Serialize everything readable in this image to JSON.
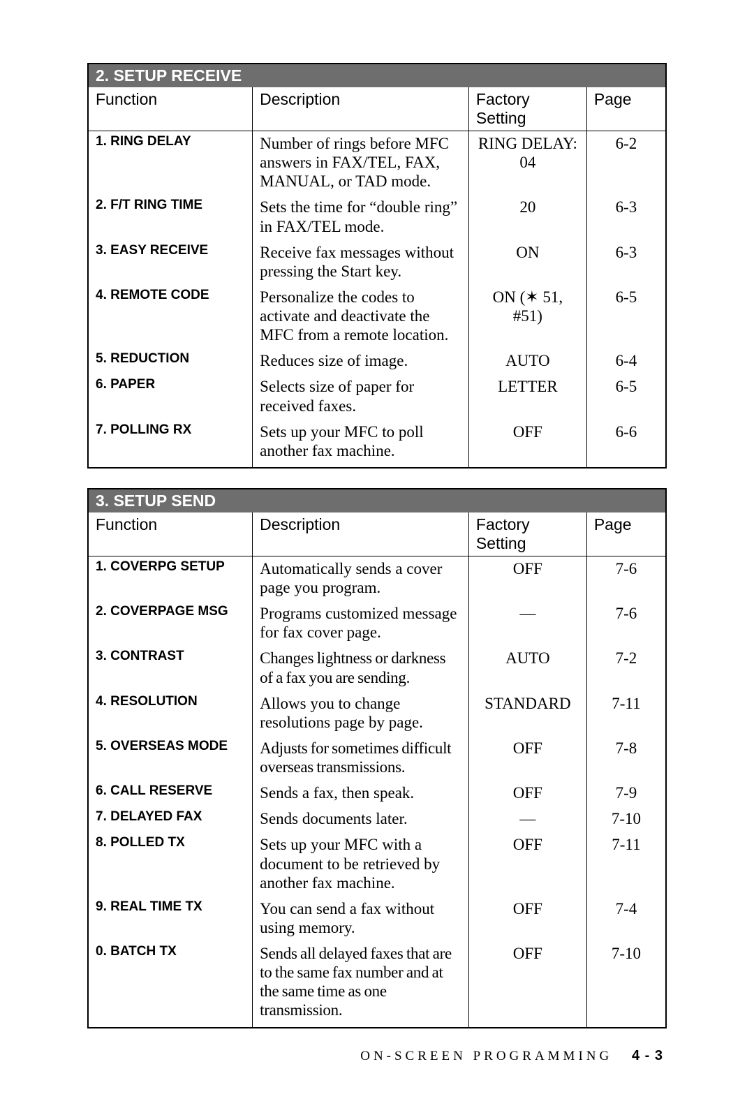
{
  "sections": [
    {
      "title": "2. SETUP RECEIVE",
      "columns": [
        "Function",
        "Description",
        "Factory Setting",
        "Page"
      ],
      "rows": [
        {
          "func": "1. RING DELAY",
          "desc": "Number of rings before MFC answers in FAX/TEL, FAX, MANUAL, or TAD mode.",
          "fact": "RING DELAY: 04",
          "page": "6-2"
        },
        {
          "func": "2. F/T RING TIME",
          "desc": "Sets the time for “double ring” in FAX/TEL mode.",
          "fact": "20",
          "page": "6-3"
        },
        {
          "func": "3. EASY RECEIVE",
          "desc": "Receive fax messages without pressing the Start key.",
          "fact": "ON",
          "page": "6-3"
        },
        {
          "func": "4. REMOTE CODE",
          "desc": "Personalize the codes to activate and deactivate the MFC from a remote location.",
          "fact": "ON (✶ 51, #51)",
          "page": "6-5"
        },
        {
          "func": "5. REDUCTION",
          "desc": "Reduces size of image.",
          "fact": "AUTO",
          "page": "6-4"
        },
        {
          "func": "6. PAPER",
          "desc": "Selects size of paper for received faxes.",
          "fact": "LETTER",
          "page": "6-5"
        },
        {
          "func": "7. POLLING RX",
          "desc": "Sets up your MFC to poll another fax machine.",
          "fact": "OFF",
          "page": "6-6"
        }
      ]
    },
    {
      "title": "3. SETUP SEND",
      "columns": [
        "Function",
        "Description",
        "Factory Setting",
        "Page"
      ],
      "rows": [
        {
          "func": "1. COVERPG SETUP",
          "desc": "Automatically sends a cover page you program.",
          "fact": "OFF",
          "page": "7-6"
        },
        {
          "func": "2. COVERPAGE MSG",
          "desc": "Programs customized message for fax cover page.",
          "fact": "—",
          "page": "7-6"
        },
        {
          "func": "3. CONTRAST",
          "desc": "Changes lightness or darkness of a fax you are sending.",
          "tight": true,
          "fact": "AUTO",
          "page": "7-2"
        },
        {
          "func": "4. RESOLUTION",
          "desc": "Allows you to change resolutions page by page.",
          "fact": "STANDARD",
          "page": "7-11"
        },
        {
          "func": "5. OVERSEAS MODE",
          "desc": "Adjusts for sometimes difficult overseas transmissions.",
          "tight": true,
          "fact": "OFF",
          "page": "7-8"
        },
        {
          "func": "6. CALL RESERVE",
          "desc": "Sends a fax, then speak.",
          "fact": "OFF",
          "page": "7-9"
        },
        {
          "func": "7. DELAYED FAX",
          "desc": "Sends documents later.",
          "fact": "—",
          "page": "7-10"
        },
        {
          "func": "8. POLLED TX",
          "desc": "Sets up your MFC with a document to be retrieved by another fax machine.",
          "fact": "OFF",
          "page": "7-11"
        },
        {
          "func": "9. REAL TIME TX",
          "desc": "You can send a fax without using memory.",
          "fact": "OFF",
          "page": "7-4"
        },
        {
          "func": "0. BATCH TX",
          "desc": "Sends all delayed faxes that are to the same fax number and at the same time as one transmission.",
          "tight": true,
          "fact": "OFF",
          "page": "7-10"
        }
      ]
    }
  ],
  "footer": {
    "label": "ON-SCREEN PROGRAMMING",
    "page": "4 - 3"
  },
  "styling": {
    "header_bg": "#6e6e6e",
    "header_fg": "#ffffff",
    "body_font": "Times New Roman",
    "label_font": "Arial",
    "body_fontsize": 23,
    "func_fontsize": 19,
    "border_color": "#000000",
    "background": "#ffffff",
    "col_widths_pct": [
      25,
      33,
      18,
      12
    ]
  }
}
